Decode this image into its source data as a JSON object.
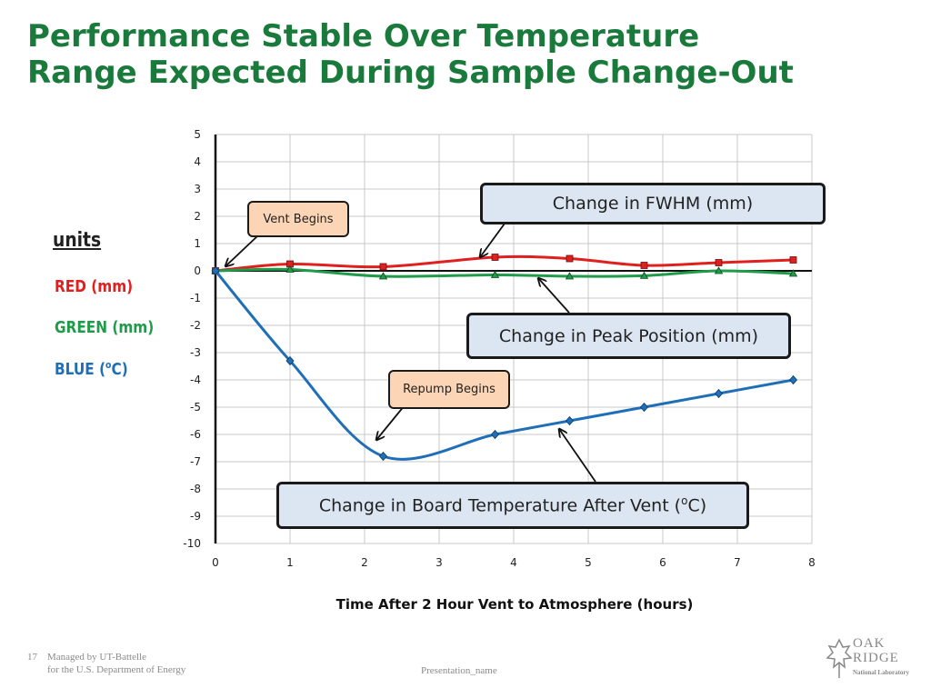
{
  "title": {
    "line1": "Performance Stable Over Temperature",
    "line2": "Range Expected During Sample Change-Out"
  },
  "legend": {
    "units_label": "units",
    "items": [
      {
        "label": "RED  (mm)",
        "color": "#e0201e"
      },
      {
        "label": "GREEN  (mm)",
        "color": "#1f9b4a"
      },
      {
        "label_prefix": "BLUE  (",
        "label_sup": "o",
        "label_suffix": "C)",
        "color": "#1f6fb8"
      }
    ]
  },
  "callouts": {
    "fwhm": "Change in FWHM  (mm)",
    "peak": "Change in Peak Position  (mm)",
    "temp_prefix": "Change in Board Temperature After Vent (",
    "temp_sup": "o",
    "temp_suffix": "C)",
    "vent": "Vent Begins",
    "repump": "Repump Begins"
  },
  "chart_data": {
    "type": "line",
    "title": "",
    "xlabel": "Time After 2 Hour Vent to Atmosphere (hours)",
    "ylabel": "",
    "xlim": [
      0,
      8
    ],
    "ylim": [
      -10,
      5
    ],
    "xticks": [
      0,
      1,
      2,
      3,
      4,
      5,
      6,
      7,
      8
    ],
    "yticks": [
      5,
      4,
      3,
      2,
      1,
      0,
      -1,
      -2,
      -3,
      -4,
      -5,
      -6,
      -7,
      -8,
      -9,
      -10
    ],
    "grid": true,
    "series": [
      {
        "name": "RED (mm)",
        "color": "#e0201e",
        "marker": "square",
        "x": [
          0,
          1,
          2.25,
          3.75,
          4.75,
          5.75,
          6.75,
          7.75
        ],
        "y": [
          0,
          0.25,
          0.15,
          0.5,
          0.45,
          0.2,
          0.3,
          0.4
        ]
      },
      {
        "name": "GREEN (mm)",
        "color": "#1f9b4a",
        "marker": "triangle",
        "x": [
          0,
          1,
          2.25,
          3.75,
          4.75,
          5.75,
          6.75,
          7.75
        ],
        "y": [
          0,
          0.05,
          -0.2,
          -0.15,
          -0.2,
          -0.18,
          0,
          -0.1
        ]
      },
      {
        "name": "BLUE (oC)",
        "color": "#1f6fb8",
        "marker": "diamond",
        "x": [
          0,
          1,
          2.25,
          3.75,
          4.75,
          5.75,
          6.75,
          7.75
        ],
        "y": [
          0,
          -3.3,
          -6.8,
          -6,
          -5.5,
          -5,
          -4.5,
          -4
        ]
      }
    ]
  },
  "footer": {
    "page_number": "17",
    "managed_line1": "Managed by UT-Battelle",
    "managed_line2": "for the U.S. Department of Energy",
    "presentation": "Presentation_name",
    "logo_line1": "OAK",
    "logo_line2": "RIDGE",
    "logo_line3": "National Laboratory"
  }
}
